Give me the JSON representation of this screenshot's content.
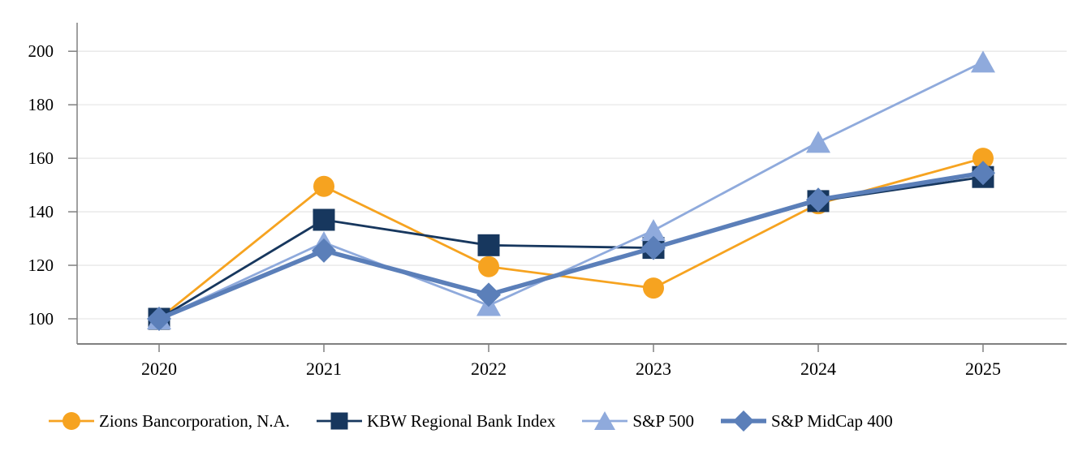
{
  "chart_data": {
    "type": "line",
    "title": "",
    "xlabel": "",
    "ylabel": "",
    "x_categories": [
      "2020",
      "2021",
      "2022",
      "2023",
      "2024",
      "2025"
    ],
    "y_ticks": [
      100,
      120,
      140,
      160,
      180,
      200
    ],
    "ylim": [
      95,
      210
    ],
    "grid": "horizontal-only",
    "legend_position": "bottom",
    "series": [
      {
        "name": "Zions Bancorporation, N.A.",
        "marker": "circle",
        "color": "#F6A320",
        "line_width": 2.8,
        "values": [
          100,
          149.5,
          119.5,
          111.5,
          143,
          160
        ]
      },
      {
        "name": "KBW Regional Bank Index",
        "marker": "square",
        "color": "#17375E",
        "line_width": 2.8,
        "values": [
          100,
          137,
          127.5,
          126.5,
          144,
          153
        ]
      },
      {
        "name": "S&P 500",
        "marker": "triangle",
        "color": "#8FAADC",
        "line_width": 2.8,
        "values": [
          100,
          128.5,
          105,
          133,
          166,
          196
        ]
      },
      {
        "name": "S&P MidCap 400",
        "marker": "diamond",
        "color": "#5B7FB9",
        "line_width": 5.5,
        "values": [
          100,
          125.5,
          109,
          126.5,
          144.5,
          154.5
        ]
      }
    ],
    "colors": {
      "axis": "#808080",
      "gridline": "#E7E7E7",
      "text": "#000000"
    }
  }
}
